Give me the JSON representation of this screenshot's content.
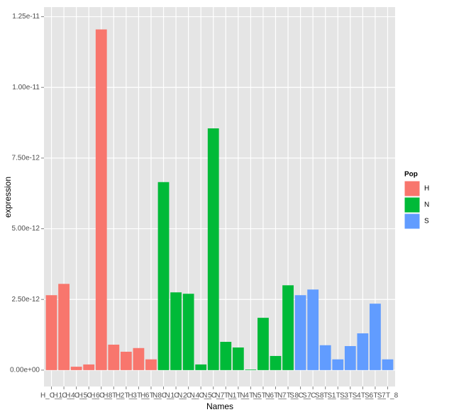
{
  "chart_data": {
    "type": "bar",
    "x_label": "Names",
    "y_label": "expression",
    "legend_title": "Pop",
    "categories": [
      "H_C_1",
      "H_C_4",
      "H_C_5",
      "H_C_6",
      "H_C_8",
      "H_T_2",
      "H_T_3",
      "H_T_6",
      "H_T_8",
      "N_C_1",
      "N_C_2",
      "N_C_4",
      "N_C_5",
      "N_C_7",
      "N_T_1",
      "N_T_4",
      "N_T_5",
      "N_T_6",
      "N_T_7",
      "N_T_8",
      "S_C_7",
      "S_C_8",
      "S_T_1",
      "S_T_3",
      "S_T_4",
      "S_T_6",
      "S_T_7",
      "S_T_8"
    ],
    "series": [
      {
        "name": "H",
        "color": "#F8766D",
        "values": [
          2.65e-12,
          3.05e-12,
          1.2e-13,
          2e-13,
          1.205e-11,
          9e-13,
          6.5e-13,
          7.8e-13,
          3.8e-13,
          null,
          null,
          null,
          null,
          null,
          null,
          null,
          null,
          null,
          null,
          null,
          null,
          null,
          null,
          null,
          null,
          null,
          null,
          null
        ]
      },
      {
        "name": "N",
        "color": "#00BA38",
        "values": [
          null,
          null,
          null,
          null,
          null,
          null,
          null,
          null,
          null,
          6.65e-12,
          2.75e-12,
          2.7e-12,
          2e-13,
          8.55e-12,
          1e-12,
          8e-13,
          2e-14,
          1.85e-12,
          5e-13,
          3e-12,
          null,
          null,
          null,
          null,
          null,
          null,
          null,
          null
        ]
      },
      {
        "name": "S",
        "color": "#619CFF",
        "values": [
          null,
          null,
          null,
          null,
          null,
          null,
          null,
          null,
          null,
          null,
          null,
          null,
          null,
          null,
          null,
          null,
          null,
          null,
          null,
          null,
          2.65e-12,
          2.85e-12,
          8.8e-13,
          3.8e-13,
          8.5e-13,
          1.3e-12,
          2.35e-12,
          3.8e-13
        ]
      }
    ],
    "ylim": [
      -5.8e-13,
      1.284e-11
    ],
    "yticks": [
      {
        "value": 0,
        "label": "0.00e+00"
      },
      {
        "value": 2.5e-12,
        "label": "2.50e-12"
      },
      {
        "value": 5e-12,
        "label": "5.00e-12"
      },
      {
        "value": 7.5e-12,
        "label": "7.50e-12"
      },
      {
        "value": 1e-11,
        "label": "1.00e-11"
      },
      {
        "value": 1.25e-11,
        "label": "1.25e-11"
      }
    ],
    "grid": true
  }
}
